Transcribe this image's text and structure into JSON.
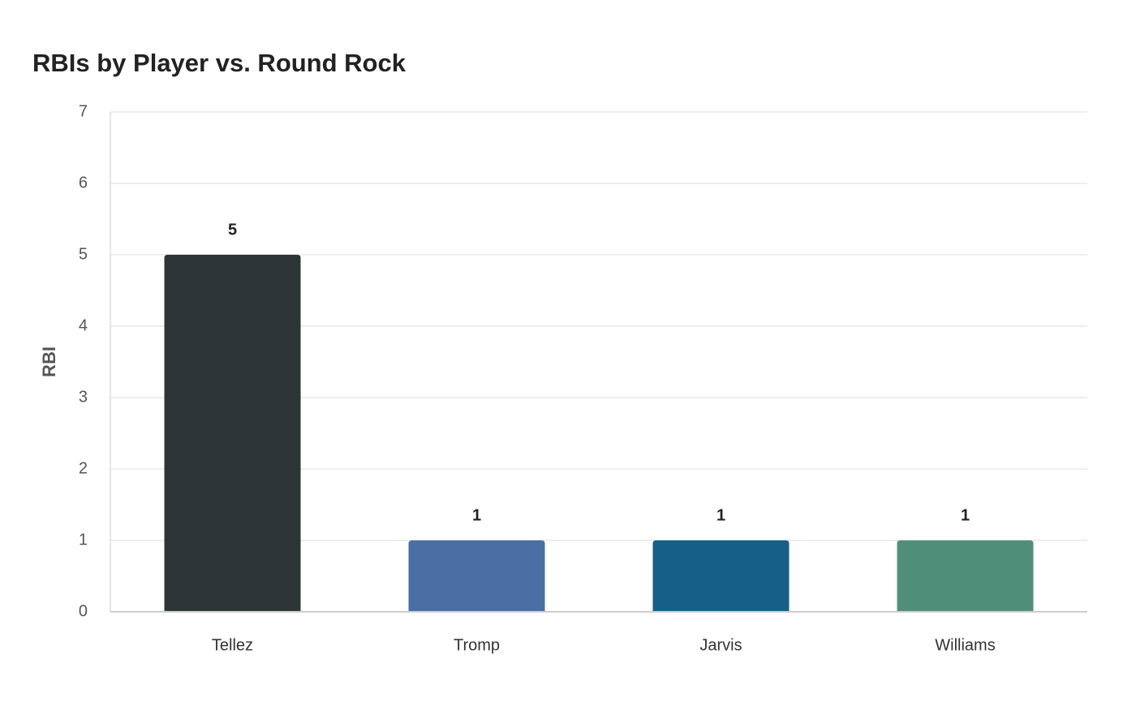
{
  "chart_data": {
    "type": "bar",
    "title": "RBIs by Player vs. Round Rock",
    "y_label": "RBI",
    "categories": [
      "Tellez",
      "Tromp",
      "Jarvis",
      "Williams"
    ],
    "values": [
      5,
      1,
      1,
      1
    ],
    "colors": [
      "#2d3436",
      "#4a6fa5",
      "#166088",
      "#4f8f7a"
    ],
    "ylim": [
      0,
      7
    ],
    "yticks": [
      0,
      1,
      2,
      3,
      4,
      5,
      6,
      7
    ],
    "grid": true
  }
}
